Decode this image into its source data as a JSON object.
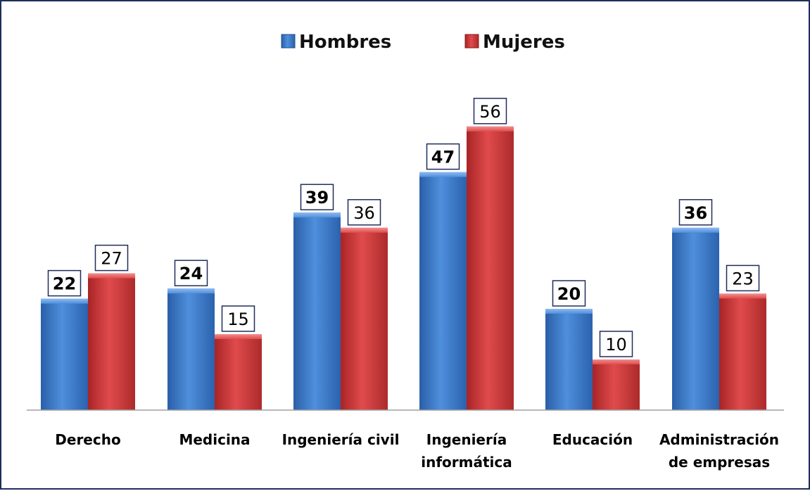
{
  "chart_data": {
    "type": "bar",
    "categories": [
      "Derecho",
      "Medicina",
      "Ingeniería civil",
      "Ingeniería informática",
      "Educación",
      "Administración de empresas"
    ],
    "series": [
      {
        "name": "Hombres",
        "values": [
          22,
          24,
          39,
          47,
          20,
          36
        ],
        "color": "#3a78c8"
      },
      {
        "name": "Mujeres",
        "values": [
          27,
          15,
          36,
          56,
          10,
          23
        ],
        "color": "#d0393b"
      }
    ],
    "title": "",
    "xlabel": "",
    "ylabel": "",
    "ylim": [
      0,
      60
    ],
    "grid": false,
    "legend": "top",
    "data_labels": true
  }
}
